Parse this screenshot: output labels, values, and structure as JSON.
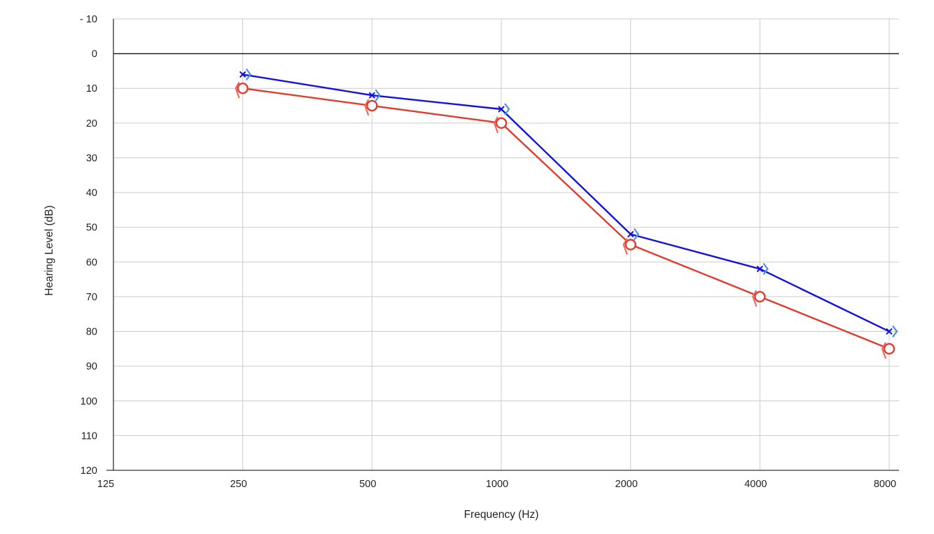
{
  "chart_data": {
    "type": "line",
    "xlabel": "Frequency (Hz)",
    "ylabel": "Hearing Level (dB)",
    "x_scale": "log2",
    "y_inverted": true,
    "categories": [
      125,
      250,
      500,
      1000,
      2000,
      4000,
      8000
    ],
    "x_tick_labels": [
      "125",
      "250",
      "500",
      "1000",
      "2000",
      "4000",
      "8000"
    ],
    "ylim": [
      -10,
      120
    ],
    "y_ticks": [
      -10,
      0,
      10,
      20,
      30,
      40,
      50,
      60,
      70,
      80,
      90,
      100,
      110,
      120
    ],
    "y_tick_labels": [
      "- 10",
      "0",
      "10",
      "20",
      "30",
      "40",
      "50",
      "60",
      "70",
      "80",
      "90",
      "100",
      "110",
      "120"
    ],
    "grid": true,
    "legend": "none",
    "series": [
      {
        "marker": "x",
        "bracket": "right",
        "color": "#1212e0",
        "bracket_color": "#4a8fe7",
        "x": [
          250,
          500,
          1000,
          2000,
          4000,
          8000
        ],
        "values": [
          6,
          12,
          16,
          52,
          62,
          80
        ]
      },
      {
        "marker": "circle",
        "bracket": "left",
        "color": "#e23b2e",
        "bracket_color": "#f06a5e",
        "x": [
          250,
          500,
          1000,
          2000,
          4000,
          8000
        ],
        "values": [
          10,
          15,
          20,
          55,
          70,
          85
        ]
      }
    ]
  }
}
